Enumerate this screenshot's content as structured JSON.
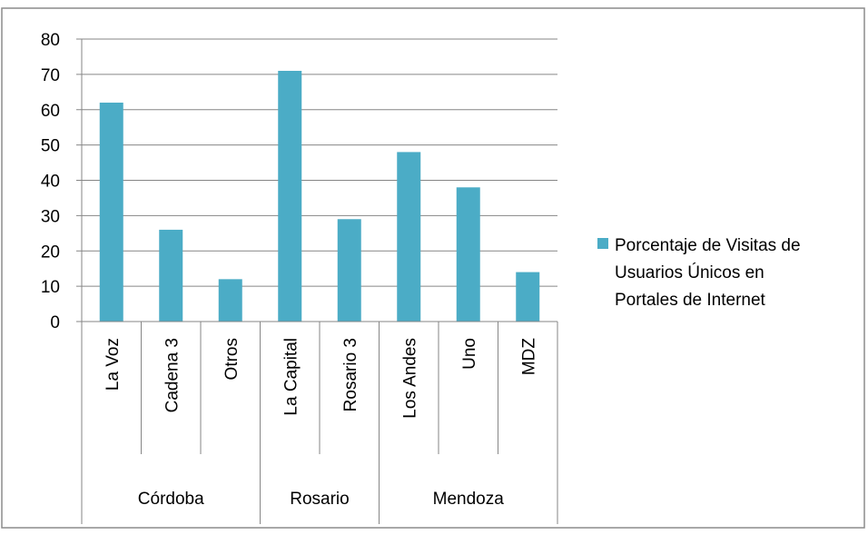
{
  "chart_data": {
    "type": "bar",
    "title": "",
    "xlabel": "",
    "ylabel": "",
    "ylim": [
      0,
      80
    ],
    "yticks": [
      0,
      10,
      20,
      30,
      40,
      50,
      60,
      70,
      80
    ],
    "grid": true,
    "legend_position": "right",
    "categories": [
      "La Voz",
      "Cadena 3",
      "Otros",
      "La Capital",
      "Rosario 3",
      "Los Andes",
      "Uno",
      "MDZ"
    ],
    "groups": [
      {
        "label": "Córdoba",
        "categories": [
          "La Voz",
          "Cadena 3",
          "Otros"
        ]
      },
      {
        "label": "Rosario",
        "categories": [
          "La Capital",
          "Rosario 3"
        ]
      },
      {
        "label": "Mendoza",
        "categories": [
          "Los Andes",
          "Uno",
          "MDZ"
        ]
      }
    ],
    "series": [
      {
        "name": "Porcentaje de Visitas de Usuarios Únicos en Portales de Internet",
        "legend_lines": [
          "Porcentaje de Visitas de",
          "Usuarios Únicos en",
          "Portales de Internet"
        ],
        "color": "#4BACC6",
        "values": [
          62,
          26,
          12,
          71,
          29,
          48,
          38,
          14
        ]
      }
    ]
  }
}
